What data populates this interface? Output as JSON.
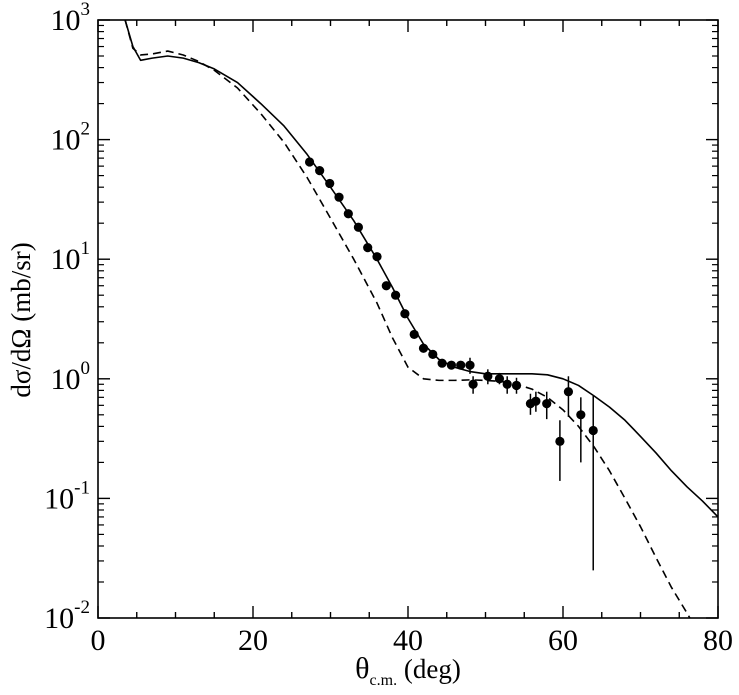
{
  "chart_data": {
    "type": "scatter",
    "title": "",
    "xlabel": {
      "main": "θ",
      "sub": "c.m.",
      "rest": " (deg)"
    },
    "ylabel": "dσ/dΩ (mb/sr)",
    "xlim": [
      0,
      80
    ],
    "ylim": [
      0.01,
      1000
    ],
    "yscale": "log",
    "grid": false,
    "legend": "none",
    "x_ticks": [
      "0",
      "20",
      "40",
      "60",
      "80"
    ],
    "y_ticks": [
      {
        "base": "10",
        "exp": "-2",
        "value": 0.01
      },
      {
        "base": "10",
        "exp": "-1",
        "value": 0.1
      },
      {
        "base": "10",
        "exp": "0",
        "value": 1
      },
      {
        "base": "10",
        "exp": "1",
        "value": 10
      },
      {
        "base": "10",
        "exp": "2",
        "value": 100
      },
      {
        "base": "10",
        "exp": "3",
        "value": 1000
      }
    ],
    "series": [
      {
        "kind": "line",
        "style": "solid",
        "x": [
          3.5,
          4.5,
          5.5,
          7,
          9,
          11,
          13,
          15,
          18,
          21,
          24,
          27,
          30,
          33,
          36,
          38,
          40,
          42,
          44,
          46,
          48,
          50,
          52,
          54,
          56,
          58,
          60,
          62,
          64,
          66,
          68,
          70,
          72,
          74,
          76,
          78,
          80
        ],
        "y": [
          1000,
          600,
          460,
          480,
          500,
          480,
          440,
          390,
          300,
          200,
          130,
          75,
          40,
          21,
          10,
          5.8,
          3.2,
          1.95,
          1.45,
          1.25,
          1.15,
          1.1,
          1.1,
          1.1,
          1.1,
          1.08,
          1.0,
          0.88,
          0.72,
          0.58,
          0.45,
          0.33,
          0.24,
          0.17,
          0.125,
          0.095,
          0.07
        ]
      },
      {
        "kind": "line",
        "style": "dashed",
        "x": [
          3.5,
          4.5,
          5.5,
          7,
          9,
          11,
          13,
          15,
          18,
          21,
          24,
          27,
          30,
          33,
          36,
          38,
          40,
          42,
          44,
          46,
          48,
          50,
          52,
          54,
          56,
          58,
          60,
          62,
          64,
          66,
          68,
          70,
          72,
          74,
          76,
          77
        ],
        "y": [
          1000,
          580,
          510,
          520,
          550,
          510,
          450,
          380,
          270,
          165,
          95,
          48,
          22,
          10,
          4.3,
          2.2,
          1.25,
          1.0,
          0.97,
          0.97,
          0.98,
          0.97,
          0.95,
          0.9,
          0.82,
          0.7,
          0.55,
          0.4,
          0.27,
          0.17,
          0.1,
          0.058,
          0.032,
          0.018,
          0.011,
          0.0085
        ]
      },
      {
        "kind": "points",
        "x": [
          27.3,
          28.6,
          29.9,
          31.1,
          32.3,
          33.6,
          34.8,
          36.0,
          37.2,
          38.4,
          39.6,
          40.8,
          42.0,
          43.2,
          44.4,
          45.6,
          46.8,
          48.0,
          48.4,
          50.3,
          51.8,
          52.8,
          54.0,
          55.8,
          56.5,
          57.9,
          59.6,
          60.7,
          62.3,
          63.9
        ],
        "y": [
          65,
          55,
          43,
          33,
          24,
          18.5,
          12.5,
          10.5,
          6,
          5,
          3.5,
          2.35,
          1.8,
          1.6,
          1.35,
          1.3,
          1.3,
          1.3,
          0.9,
          1.05,
          1.0,
          0.9,
          0.88,
          0.62,
          0.65,
          0.62,
          0.3,
          0.78,
          0.5,
          0.37
        ],
        "err_low": [
          65,
          55,
          43,
          33,
          24,
          18.5,
          12.5,
          10.5,
          6,
          5,
          3.5,
          2.35,
          1.8,
          1.6,
          1.35,
          1.3,
          1.3,
          1.1,
          0.75,
          0.9,
          0.9,
          0.75,
          0.75,
          0.5,
          0.53,
          0.46,
          0.14,
          0.48,
          0.2,
          0.025
        ],
        "err_high": [
          65,
          55,
          43,
          33,
          24,
          18.5,
          12.5,
          10.5,
          6,
          5,
          3.5,
          2.35,
          1.8,
          1.6,
          1.35,
          1.3,
          1.3,
          1.5,
          1.05,
          1.2,
          1.12,
          1.05,
          1.02,
          0.75,
          0.78,
          0.78,
          0.45,
          1.05,
          0.7,
          0.72
        ]
      }
    ]
  }
}
